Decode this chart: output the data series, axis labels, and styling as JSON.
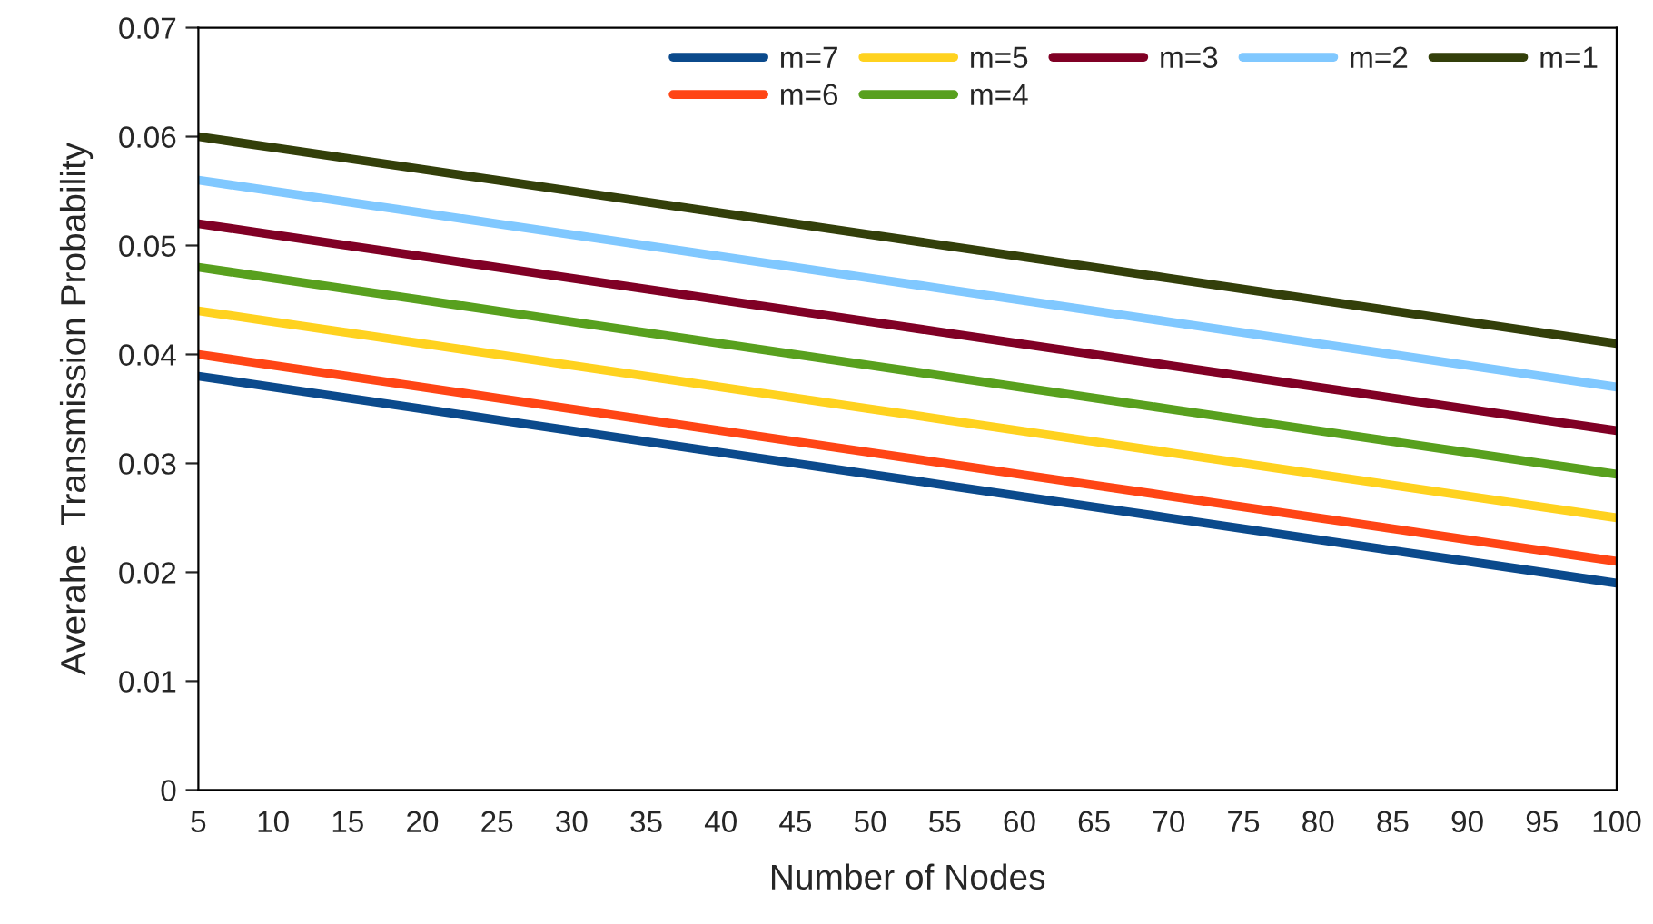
{
  "chart_data": {
    "type": "line",
    "xlabel": "Number of Nodes",
    "ylabel": "Averahe  Transmission Probability",
    "x": [
      5,
      10,
      15,
      20,
      25,
      30,
      35,
      40,
      45,
      50,
      55,
      60,
      65,
      70,
      75,
      80,
      85,
      90,
      95,
      100
    ],
    "series": [
      {
        "name": "m=7",
        "color": "#0b4a8c",
        "values": [
          0.038,
          0.037,
          0.036,
          0.035,
          0.034,
          0.033,
          0.032,
          0.031,
          0.03,
          0.029,
          0.028,
          0.027,
          0.026,
          0.025,
          0.024,
          0.023,
          0.022,
          0.021,
          0.02,
          0.019
        ]
      },
      {
        "name": "m=6",
        "color": "#ff4515",
        "values": [
          0.04,
          0.039,
          0.038,
          0.037,
          0.036,
          0.035,
          0.034,
          0.033,
          0.032,
          0.031,
          0.03,
          0.029,
          0.028,
          0.027,
          0.026,
          0.025,
          0.024,
          0.023,
          0.022,
          0.021
        ]
      },
      {
        "name": "m=5",
        "color": "#ffd21f",
        "values": [
          0.044,
          0.043,
          0.042,
          0.041,
          0.04,
          0.039,
          0.038,
          0.037,
          0.036,
          0.035,
          0.034,
          0.033,
          0.032,
          0.031,
          0.03,
          0.029,
          0.028,
          0.027,
          0.026,
          0.025
        ]
      },
      {
        "name": "m=4",
        "color": "#58a01e",
        "values": [
          0.048,
          0.047,
          0.046,
          0.045,
          0.044,
          0.043,
          0.042,
          0.041,
          0.04,
          0.039,
          0.038,
          0.037,
          0.036,
          0.035,
          0.034,
          0.033,
          0.032,
          0.031,
          0.03,
          0.029
        ]
      },
      {
        "name": "m=3",
        "color": "#800025",
        "values": [
          0.052,
          0.051,
          0.05,
          0.049,
          0.048,
          0.047,
          0.046,
          0.045,
          0.044,
          0.043,
          0.042,
          0.041,
          0.04,
          0.039,
          0.038,
          0.037,
          0.036,
          0.035,
          0.034,
          0.033
        ]
      },
      {
        "name": "m=2",
        "color": "#80c8ff",
        "values": [
          0.056,
          0.055,
          0.054,
          0.053,
          0.052,
          0.051,
          0.05,
          0.049,
          0.048,
          0.047,
          0.046,
          0.045,
          0.044,
          0.043,
          0.042,
          0.041,
          0.04,
          0.039,
          0.038,
          0.037
        ]
      },
      {
        "name": "m=1",
        "color": "#333f0a",
        "values": [
          0.06,
          0.059,
          0.058,
          0.057,
          0.056,
          0.055,
          0.054,
          0.053,
          0.052,
          0.051,
          0.05,
          0.049,
          0.048,
          0.047,
          0.046,
          0.045,
          0.044,
          0.043,
          0.042,
          0.041
        ]
      }
    ],
    "xlim": [
      5,
      100
    ],
    "xticks": [
      5,
      10,
      15,
      20,
      25,
      30,
      35,
      40,
      45,
      50,
      55,
      60,
      65,
      70,
      75,
      80,
      85,
      90,
      95,
      100
    ],
    "ylim": [
      0,
      0.07
    ],
    "yticks": [
      {
        "value": 0,
        "label": "0"
      },
      {
        "value": 0.01,
        "label": "0.01"
      },
      {
        "value": 0.02,
        "label": "0.02"
      },
      {
        "value": 0.03,
        "label": "0.03"
      },
      {
        "value": 0.04,
        "label": "0.04"
      },
      {
        "value": 0.05,
        "label": "0.05"
      },
      {
        "value": 0.06,
        "label": "0.06"
      },
      {
        "value": 0.07,
        "label": "0.07"
      }
    ],
    "legend": "top right",
    "grid": false,
    "marker": "none",
    "line_style": "solid"
  }
}
